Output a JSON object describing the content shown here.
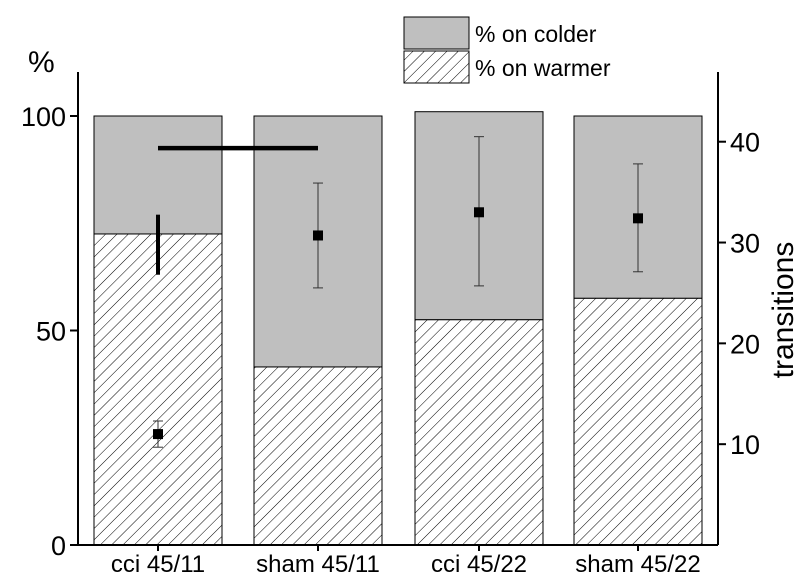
{
  "chart_data": {
    "type": "bar",
    "stacked": true,
    "categories": [
      "cci 45/11",
      "sham 45/11",
      "cci 45/22",
      "sham 45/22"
    ],
    "series": [
      {
        "name": "% on warmer",
        "pattern": "hatched",
        "values": [
          72.5,
          41.5,
          52.5,
          57.5
        ]
      },
      {
        "name": "% on colder",
        "color": "#bfbfbf",
        "values": [
          27.5,
          58.5,
          48.5,
          42.5
        ]
      }
    ],
    "y_left": {
      "label": "%",
      "ticks": [
        "0",
        "50",
        "100"
      ],
      "lim": [
        0,
        100
      ]
    },
    "y_right": {
      "label": "transitions",
      "ticks": [
        "10",
        "20",
        "30",
        "40"
      ],
      "lim": [
        0,
        45.4
      ]
    },
    "transitions": [
      {
        "category": "cci 45/11",
        "mean": 11.0,
        "low": 9.7,
        "high": 12.3
      },
      {
        "category": "sham 45/11",
        "mean": 30.7,
        "low": 25.5,
        "high": 35.9
      },
      {
        "category": "cci 45/22",
        "mean": 33.0,
        "low": 25.7,
        "high": 40.5
      },
      {
        "category": "sham 45/22",
        "mean": 32.4,
        "low": 27.1,
        "high": 37.8
      }
    ],
    "annotations": {
      "cci_vertical_bar_percent": [
        63,
        77
      ],
      "significance_bracket": {
        "from": "cci 45/11",
        "to": "sham 45/11",
        "percent": 92.5
      }
    },
    "legend": {
      "placement": "top-right",
      "entries": [
        "% on colder",
        "% on warmer"
      ]
    },
    "grid": false
  }
}
